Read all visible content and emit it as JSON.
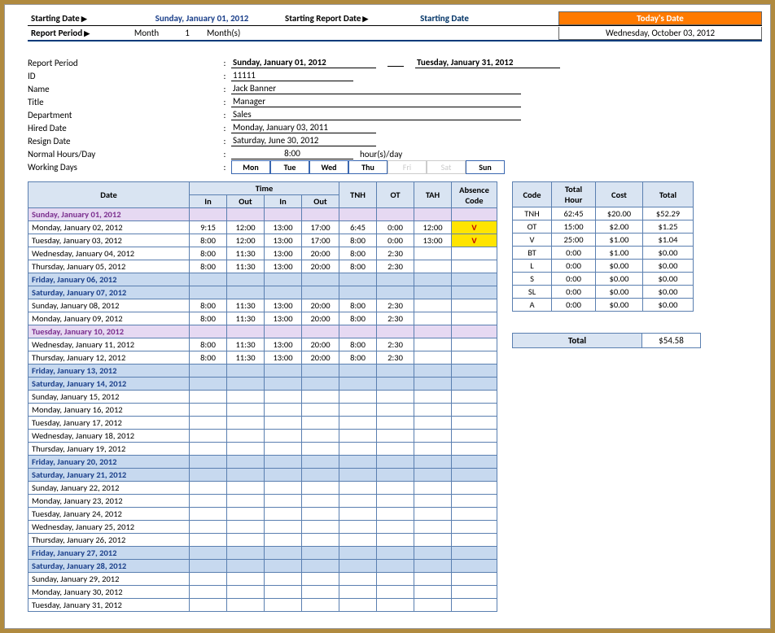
{
  "header": {
    "starting_date_label": "Starting Date",
    "starting_date_value": "Sunday, January 01, 2012",
    "starting_report_label": "Starting Report Date",
    "starting_report_value": "Starting Date",
    "report_period_label": "Report Period",
    "report_period_unit": "Month",
    "report_period_qty": "1",
    "report_period_suffix": "Month(s)",
    "today_label": "Today's Date",
    "today_value": "Wednesday, October 03, 2012"
  },
  "info": {
    "report_period_lbl": "Report Period",
    "report_period_from": "Sunday, January 01, 2012",
    "report_period_to": "Tuesday, January 31, 2012",
    "id_lbl": "ID",
    "id_val": "11111",
    "name_lbl": "Name",
    "name_val": "Jack Banner",
    "title_lbl": "Title",
    "title_val": "Manager",
    "dept_lbl": "Department",
    "dept_val": "Sales",
    "hired_lbl": "Hired Date",
    "hired_val": "Monday, January 03, 2011",
    "resign_lbl": "Resign Date",
    "resign_val": "Saturday, June 30, 2012",
    "nhours_lbl": "Normal Hours/Day",
    "nhours_val": "8:00",
    "nhours_unit": "hour(s)/day",
    "wdays_lbl": "Working Days",
    "days": [
      "Mon",
      "Tue",
      "Wed",
      "Thu",
      "Fri",
      "Sat",
      "Sun"
    ],
    "days_off_idx": [
      4,
      5
    ]
  },
  "ts": {
    "head": {
      "date": "Date",
      "time": "Time",
      "in": "In",
      "out": "Out",
      "tnh": "TNH",
      "ot": "OT",
      "tah": "TAH",
      "abs": "Absence Code"
    },
    "rows": [
      {
        "d": "Sunday, January 01, 2012",
        "cls": "lav"
      },
      {
        "d": "Monday, January 02, 2012",
        "in1": "9:15",
        "out1": "12:00",
        "in2": "13:00",
        "out2": "17:00",
        "tnh": "6:45",
        "ot": "0:00",
        "tah": "12:00",
        "abs": "V",
        "absCls": "absV"
      },
      {
        "d": "Tuesday, January 03, 2012",
        "in1": "8:00",
        "out1": "12:00",
        "in2": "13:00",
        "out2": "17:00",
        "tnh": "8:00",
        "ot": "0:00",
        "tah": "13:00",
        "abs": "V",
        "absCls": "absV"
      },
      {
        "d": "Wednesday, January 04, 2012",
        "in1": "8:00",
        "out1": "11:30",
        "in2": "13:00",
        "out2": "20:00",
        "tnh": "8:00",
        "ot": "2:30"
      },
      {
        "d": "Thursday, January 05, 2012",
        "in1": "8:00",
        "out1": "11:30",
        "in2": "13:00",
        "out2": "20:00",
        "tnh": "8:00",
        "ot": "2:30"
      },
      {
        "d": "Friday, January 06, 2012",
        "cls": "blu"
      },
      {
        "d": "Saturday, January 07, 2012",
        "cls": "blu"
      },
      {
        "d": "Sunday, January 08, 2012",
        "in1": "8:00",
        "out1": "11:30",
        "in2": "13:00",
        "out2": "20:00",
        "tnh": "8:00",
        "ot": "2:30"
      },
      {
        "d": "Monday, January 09, 2012",
        "in1": "8:00",
        "out1": "11:30",
        "in2": "13:00",
        "out2": "20:00",
        "tnh": "8:00",
        "ot": "2:30"
      },
      {
        "d": "Tuesday, January 10, 2012",
        "cls": "lav"
      },
      {
        "d": "Wednesday, January 11, 2012",
        "in1": "8:00",
        "out1": "11:30",
        "in2": "13:00",
        "out2": "20:00",
        "tnh": "8:00",
        "ot": "2:30"
      },
      {
        "d": "Thursday, January 12, 2012",
        "in1": "8:00",
        "out1": "11:30",
        "in2": "13:00",
        "out2": "20:00",
        "tnh": "8:00",
        "ot": "2:30"
      },
      {
        "d": "Friday, January 13, 2012",
        "cls": "blu"
      },
      {
        "d": "Saturday, January 14, 2012",
        "cls": "blu"
      },
      {
        "d": "Sunday, January 15, 2012"
      },
      {
        "d": "Monday, January 16, 2012"
      },
      {
        "d": "Tuesday, January 17, 2012"
      },
      {
        "d": "Wednesday, January 18, 2012"
      },
      {
        "d": "Thursday, January 19, 2012"
      },
      {
        "d": "Friday, January 20, 2012",
        "cls": "blu"
      },
      {
        "d": "Saturday, January 21, 2012",
        "cls": "blu"
      },
      {
        "d": "Sunday, January 22, 2012"
      },
      {
        "d": "Monday, January 23, 2012"
      },
      {
        "d": "Tuesday, January 24, 2012"
      },
      {
        "d": "Wednesday, January 25, 2012"
      },
      {
        "d": "Thursday, January 26, 2012"
      },
      {
        "d": "Friday, January 27, 2012",
        "cls": "blu"
      },
      {
        "d": "Saturday, January 28, 2012",
        "cls": "blu"
      },
      {
        "d": "Sunday, January 29, 2012"
      },
      {
        "d": "Monday, January 30, 2012"
      },
      {
        "d": "Tuesday, January 31, 2012"
      }
    ]
  },
  "summary": {
    "head": {
      "code": "Code",
      "th": "Total Hour",
      "cost": "Cost",
      "total": "Total"
    },
    "rows": [
      {
        "c": "TNH",
        "th": "62:45",
        "cost": "$20.00",
        "tot": "$52.29"
      },
      {
        "c": "OT",
        "th": "15:00",
        "cost": "$2.00",
        "tot": "$1.25"
      },
      {
        "c": "V",
        "th": "25:00",
        "cost": "$1.00",
        "tot": "$1.04"
      },
      {
        "c": "BT",
        "th": "0:00",
        "cost": "$1.00",
        "tot": "$0.00"
      },
      {
        "c": "L",
        "th": "0:00",
        "cost": "$0.00",
        "tot": "$0.00"
      },
      {
        "c": "S",
        "th": "0:00",
        "cost": "$0.00",
        "tot": "$0.00"
      },
      {
        "c": "SL",
        "th": "0:00",
        "cost": "$0.00",
        "tot": "$0.00"
      },
      {
        "c": "A",
        "th": "0:00",
        "cost": "$0.00",
        "tot": "$0.00"
      }
    ],
    "grand_label": "Total",
    "grand_value": "$54.58"
  },
  "style": {
    "weekend_bg": "#c7d9ef",
    "holiday_bg": "#e6d9f2",
    "header_bg": "#d9e4f2",
    "border": "#5a7fb0",
    "today_bg": "#ff7a00",
    "absence_bg": "#ffe400"
  }
}
